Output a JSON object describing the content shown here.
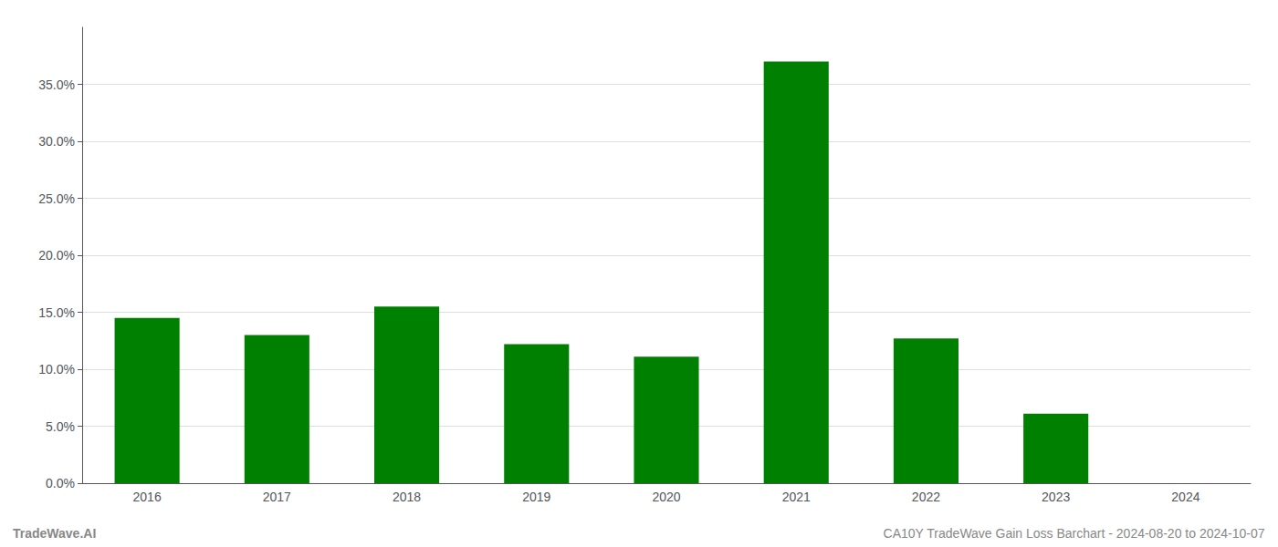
{
  "chart_data": {
    "type": "bar",
    "categories": [
      "2016",
      "2017",
      "2018",
      "2019",
      "2020",
      "2021",
      "2022",
      "2023",
      "2024"
    ],
    "values": [
      0.145,
      0.13,
      0.155,
      0.122,
      0.111,
      0.37,
      0.127,
      0.061,
      0.0
    ],
    "color": "#008000",
    "ylim": [
      0,
      0.4
    ],
    "yticks": [
      {
        "value": 0.0,
        "label": "0.0%"
      },
      {
        "value": 0.05,
        "label": "5.0%"
      },
      {
        "value": 0.1,
        "label": "10.0%"
      },
      {
        "value": 0.15,
        "label": "15.0%"
      },
      {
        "value": 0.2,
        "label": "20.0%"
      },
      {
        "value": 0.25,
        "label": "25.0%"
      },
      {
        "value": 0.3,
        "label": "30.0%"
      },
      {
        "value": 0.35,
        "label": "35.0%"
      }
    ],
    "grid": true,
    "annotations": [
      "TradeWave.AI",
      "CA10Y TradeWave Gain Loss Barchart - 2024-08-20 to 2024-10-07"
    ]
  }
}
